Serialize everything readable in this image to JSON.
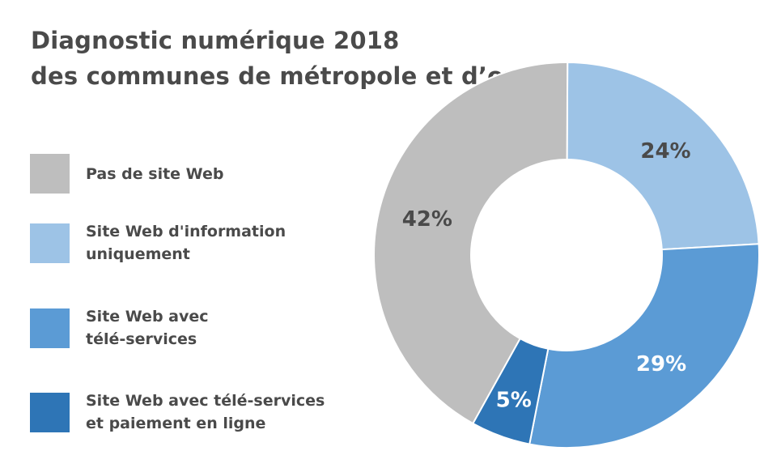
{
  "chart_data": {
    "type": "pie",
    "title": "Diagnostic numérique 2018",
    "subtitle": "des communes de métropole et d’outre-mer",
    "categories": [
      "Pas de site Web",
      "Site Web d'information uniquement",
      "Site Web avec télé-services",
      "Site Web avec télé-services et paiement en ligne"
    ],
    "values": [
      42,
      24,
      29,
      5
    ],
    "data_labels": [
      "42%",
      "24%",
      "29%",
      "5%"
    ],
    "colors": [
      "#bebebe",
      "#9dc3e6",
      "#5b9bd5",
      "#2e75b6"
    ],
    "label_colors": [
      "#4a4a4a",
      "#4a4a4a",
      "#ffffff",
      "#ffffff"
    ],
    "donut": true,
    "legend_position": "left"
  },
  "legend": [
    {
      "line1": "Pas de site Web",
      "line2": ""
    },
    {
      "line1": "Site Web d'information",
      "line2": "uniquement"
    },
    {
      "line1": "Site Web avec",
      "line2": "télé-services"
    },
    {
      "line1": "Site Web avec télé-services",
      "line2": "et paiement en ligne"
    }
  ]
}
